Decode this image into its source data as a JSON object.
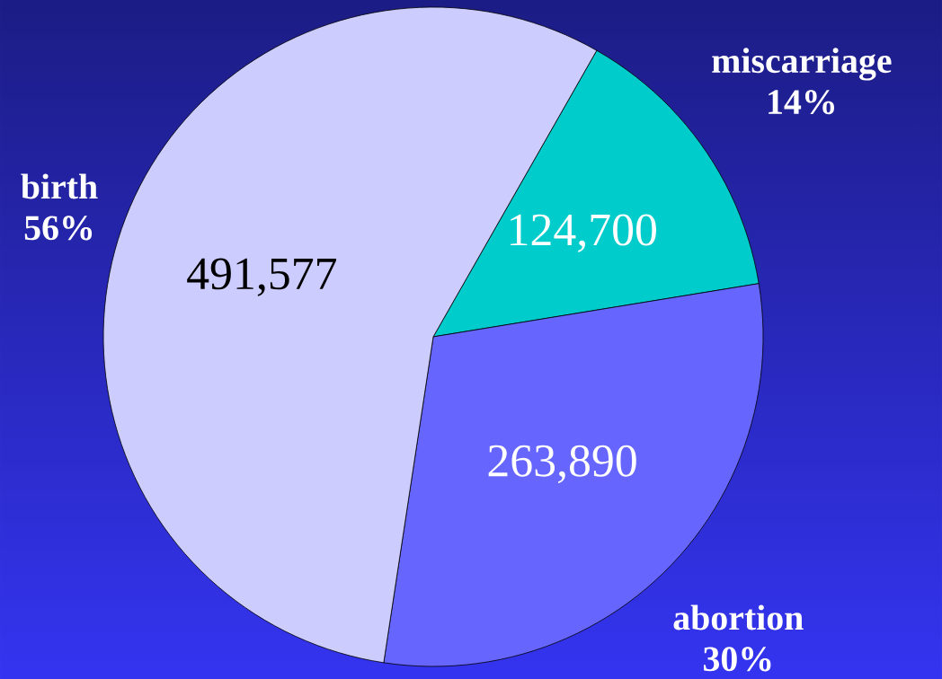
{
  "chart_data": {
    "type": "pie",
    "categories": [
      "miscarriage 14%",
      "abortion 30%",
      "birth 56%"
    ],
    "values": [
      124700,
      263890,
      491577
    ],
    "colors": [
      "#00cccc",
      "#6666ff",
      "#ccccff"
    ],
    "value_labels": [
      "124,700",
      "263,890",
      "491,577"
    ]
  }
}
